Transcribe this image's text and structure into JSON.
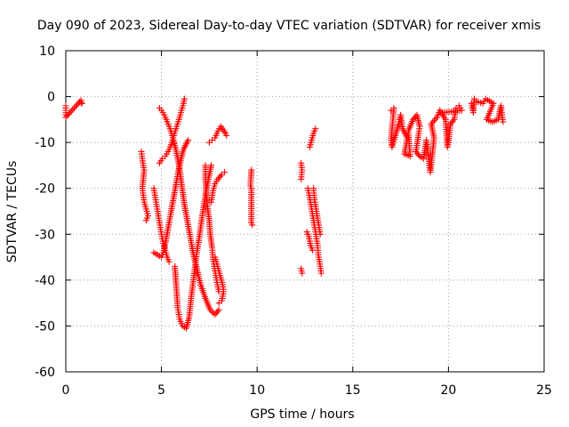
{
  "chart_data": {
    "type": "scatter",
    "title": "Day 090 of 2023, Sidereal Day-to-day VTEC variation (SDTVAR) for receiver xmis",
    "xlabel": "GPS time / hours",
    "ylabel": "SDTVAR / TECUs",
    "xlim": [
      0,
      25
    ],
    "ylim": [
      -60,
      10
    ],
    "x_ticks": [
      0,
      5,
      10,
      15,
      20,
      25
    ],
    "x_tick_labels": [
      "0",
      "5",
      "10",
      "15",
      "20",
      "25"
    ],
    "y_ticks": [
      10,
      0,
      -10,
      -20,
      -30,
      -40,
      -50,
      -60
    ],
    "y_tick_labels": [
      "10",
      "0",
      "-10",
      "-20",
      "-30",
      "-40",
      "-50",
      "-60"
    ],
    "grid": true,
    "marker": "plus",
    "color": "#ff0000",
    "series": [
      {
        "values": [
          [
            0.0,
            -2.0
          ],
          [
            0.0,
            -3.0
          ],
          [
            0.0,
            -4.5
          ],
          [
            0.8,
            -0.8
          ],
          [
            0.8,
            -1.3
          ],
          [
            0.85,
            -1.5
          ]
        ]
      },
      {
        "values": [
          [
            3.95,
            -12.0
          ],
          [
            4.0,
            -13.5
          ],
          [
            4.05,
            -15.0
          ],
          [
            4.1,
            -16.0
          ],
          [
            4.0,
            -20.0
          ],
          [
            4.05,
            -21.5
          ],
          [
            4.1,
            -23.0
          ],
          [
            4.2,
            -24.5
          ],
          [
            4.3,
            -26.0
          ],
          [
            4.2,
            -27.0
          ]
        ]
      },
      {
        "values": [
          [
            4.9,
            -2.5
          ],
          [
            5.0,
            -3.0
          ],
          [
            5.15,
            -4.0
          ],
          [
            5.3,
            -5.5
          ],
          [
            5.45,
            -7.0
          ],
          [
            5.6,
            -9.0
          ],
          [
            5.75,
            -11.5
          ],
          [
            5.9,
            -14.5
          ],
          [
            6.0,
            -17.5
          ],
          [
            6.1,
            -20.5
          ],
          [
            6.2,
            -23.5
          ],
          [
            6.35,
            -27.0
          ],
          [
            6.5,
            -30.5
          ],
          [
            6.65,
            -34.0
          ],
          [
            6.85,
            -37.5
          ],
          [
            7.05,
            -41.0
          ],
          [
            7.3,
            -44.0
          ],
          [
            7.55,
            -46.5
          ],
          [
            7.8,
            -47.5
          ],
          [
            8.0,
            -46.5
          ]
        ]
      },
      {
        "values": [
          [
            6.2,
            -0.5
          ],
          [
            6.15,
            -1.5
          ],
          [
            6.05,
            -3.0
          ],
          [
            5.95,
            -4.5
          ],
          [
            5.8,
            -6.5
          ],
          [
            5.65,
            -8.5
          ],
          [
            5.5,
            -10.5
          ],
          [
            5.35,
            -12.0
          ],
          [
            5.2,
            -13.0
          ],
          [
            5.05,
            -13.5
          ],
          [
            4.9,
            -14.5
          ]
        ]
      },
      {
        "values": [
          [
            4.6,
            -34.0
          ],
          [
            4.8,
            -34.5
          ],
          [
            5.0,
            -35.0
          ],
          [
            5.1,
            -34.0
          ],
          [
            5.25,
            -31.0
          ],
          [
            5.4,
            -27.5
          ],
          [
            5.55,
            -24.0
          ],
          [
            5.7,
            -20.5
          ],
          [
            5.85,
            -17.0
          ],
          [
            6.0,
            -14.0
          ],
          [
            6.15,
            -11.5
          ],
          [
            6.4,
            -9.5
          ]
        ]
      },
      {
        "values": [
          [
            4.6,
            -20.0
          ],
          [
            4.7,
            -22.5
          ],
          [
            4.8,
            -25.0
          ],
          [
            4.9,
            -27.5
          ],
          [
            5.0,
            -30.0
          ],
          [
            5.1,
            -32.0
          ],
          [
            5.2,
            -33.5
          ],
          [
            5.3,
            -35.0
          ],
          [
            5.4,
            -36.0
          ]
        ]
      },
      {
        "values": [
          [
            5.7,
            -37.0
          ],
          [
            5.75,
            -40.0
          ],
          [
            5.8,
            -43.0
          ],
          [
            5.85,
            -46.0
          ],
          [
            5.95,
            -48.5
          ],
          [
            6.1,
            -50.0
          ],
          [
            6.3,
            -50.5
          ],
          [
            6.45,
            -48.0
          ],
          [
            6.55,
            -44.0
          ],
          [
            6.7,
            -39.0
          ],
          [
            6.85,
            -34.0
          ],
          [
            7.0,
            -30.0
          ],
          [
            7.15,
            -25.5
          ],
          [
            7.3,
            -21.5
          ],
          [
            7.45,
            -18.0
          ],
          [
            7.6,
            -15.0
          ]
        ]
      },
      {
        "values": [
          [
            7.3,
            -15.0
          ],
          [
            7.3,
            -18.0
          ],
          [
            7.35,
            -21.0
          ],
          [
            7.4,
            -24.0
          ],
          [
            7.5,
            -27.0
          ],
          [
            7.55,
            -30.0
          ],
          [
            7.65,
            -33.0
          ],
          [
            7.7,
            -35.5
          ],
          [
            7.8,
            -38.0
          ],
          [
            7.9,
            -40.5
          ],
          [
            8.0,
            -42.5
          ]
        ]
      },
      {
        "values": [
          [
            7.6,
            -23.0
          ],
          [
            7.7,
            -20.5
          ],
          [
            7.8,
            -19.0
          ],
          [
            7.95,
            -18.0
          ],
          [
            8.15,
            -17.0
          ],
          [
            8.3,
            -16.5
          ]
        ]
      },
      {
        "values": [
          [
            7.5,
            -10.0
          ],
          [
            7.65,
            -9.5
          ],
          [
            7.8,
            -9.0
          ],
          [
            7.95,
            -7.5
          ],
          [
            8.1,
            -6.5
          ],
          [
            8.35,
            -8.0
          ],
          [
            8.4,
            -8.5
          ]
        ]
      },
      {
        "values": [
          [
            7.8,
            -35.0
          ],
          [
            7.9,
            -36.5
          ],
          [
            8.0,
            -38.0
          ],
          [
            8.1,
            -39.5
          ],
          [
            8.2,
            -41.0
          ],
          [
            8.25,
            -42.5
          ],
          [
            8.15,
            -44.5
          ],
          [
            8.0,
            -45.0
          ]
        ]
      },
      {
        "values": [
          [
            9.7,
            -16.0
          ],
          [
            9.65,
            -19.5
          ],
          [
            9.7,
            -20.0
          ],
          [
            9.7,
            -27.5
          ],
          [
            9.75,
            -28.0
          ]
        ]
      },
      {
        "values": [
          [
            12.3,
            -14.5
          ],
          [
            12.35,
            -16.0
          ],
          [
            12.3,
            -18.0
          ],
          [
            12.3,
            -37.5
          ],
          [
            12.35,
            -38.5
          ]
        ]
      },
      {
        "values": [
          [
            12.65,
            -20.0
          ],
          [
            12.75,
            -22.0
          ],
          [
            12.85,
            -24.5
          ],
          [
            12.95,
            -27.0
          ],
          [
            13.05,
            -29.5
          ],
          [
            13.15,
            -32.0
          ],
          [
            13.2,
            -34.5
          ],
          [
            13.3,
            -37.0
          ],
          [
            13.35,
            -38.5
          ]
        ]
      },
      {
        "values": [
          [
            13.3,
            -30.0
          ],
          [
            13.2,
            -27.5
          ],
          [
            13.1,
            -25.0
          ],
          [
            13.0,
            -22.5
          ],
          [
            12.95,
            -20.0
          ]
        ]
      },
      {
        "values": [
          [
            12.6,
            -29.5
          ],
          [
            12.7,
            -30.5
          ],
          [
            12.8,
            -32.5
          ],
          [
            12.9,
            -33.5
          ]
        ]
      },
      {
        "values": [
          [
            12.75,
            -11.0
          ],
          [
            12.85,
            -9.5
          ],
          [
            12.95,
            -8.0
          ],
          [
            13.05,
            -7.0
          ]
        ]
      },
      {
        "values": [
          [
            17.0,
            -3.0
          ],
          [
            17.15,
            -2.5
          ],
          [
            17.0,
            -9.5
          ],
          [
            17.05,
            -11.0
          ],
          [
            17.4,
            -6.0
          ],
          [
            17.5,
            -4.0
          ],
          [
            17.6,
            -7.0
          ],
          [
            17.85,
            -9.0
          ],
          [
            17.7,
            -12.5
          ],
          [
            18.0,
            -13.0
          ],
          [
            17.9,
            -7.5
          ],
          [
            18.15,
            -5.0
          ],
          [
            18.35,
            -4.0
          ],
          [
            18.5,
            -6.5
          ],
          [
            18.45,
            -8.0
          ],
          [
            18.3,
            -12.0
          ],
          [
            18.5,
            -13.0
          ],
          [
            18.7,
            -13.5
          ],
          [
            18.85,
            -9.5
          ],
          [
            18.9,
            -11.0
          ],
          [
            19.0,
            -15.0
          ],
          [
            19.05,
            -16.5
          ],
          [
            19.15,
            -13.0
          ],
          [
            19.25,
            -9.0
          ],
          [
            19.1,
            -6.0
          ],
          [
            19.4,
            -4.5
          ],
          [
            19.55,
            -3.0
          ],
          [
            19.85,
            -5.0
          ],
          [
            19.9,
            -8.0
          ],
          [
            19.95,
            -11.0
          ],
          [
            20.0,
            -10.0
          ],
          [
            20.1,
            -6.0
          ],
          [
            20.3,
            -5.0
          ],
          [
            20.4,
            -2.5
          ],
          [
            20.55,
            -2.0
          ],
          [
            20.7,
            -3.0
          ],
          [
            19.7,
            -3.5
          ]
        ]
      },
      {
        "values": [
          [
            21.2,
            -1.5
          ],
          [
            21.25,
            -2.5
          ],
          [
            21.3,
            -3.5
          ],
          [
            21.35,
            -0.5
          ],
          [
            21.45,
            -1.0
          ],
          [
            21.8,
            -1.5
          ],
          [
            21.95,
            -0.5
          ],
          [
            22.15,
            -1.0
          ],
          [
            22.35,
            -1.5
          ],
          [
            22.0,
            -5.0
          ],
          [
            22.3,
            -5.5
          ],
          [
            22.6,
            -5.0
          ],
          [
            22.75,
            -2.0
          ],
          [
            22.8,
            -4.0
          ],
          [
            22.85,
            -5.5
          ]
        ]
      }
    ]
  }
}
